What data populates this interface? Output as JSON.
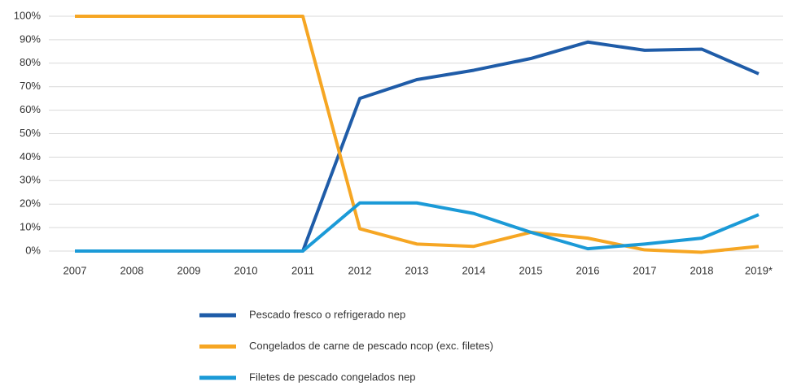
{
  "chart_data": {
    "type": "line",
    "categories": [
      "2007",
      "2008",
      "2009",
      "2010",
      "2011",
      "2012",
      "2013",
      "2014",
      "2015",
      "2016",
      "2017",
      "2018",
      "2019*"
    ],
    "series": [
      {
        "name": "Pescado fresco o refrigerado nep",
        "color": "#1f5ca8",
        "values": [
          0,
          0,
          0,
          0,
          0,
          65,
          73,
          77,
          82,
          89,
          85.5,
          86,
          75.5
        ]
      },
      {
        "name": "Congelados de carne de pescado ncop (exc. filetes)",
        "color": "#f6a623",
        "values": [
          100,
          100,
          100,
          100,
          100,
          9.5,
          3,
          2,
          8,
          5.5,
          0.5,
          -0.5,
          2
        ]
      },
      {
        "name": "Filetes de pescado congelados nep",
        "color": "#1b9ad7",
        "values": [
          0,
          0,
          0,
          0,
          0,
          20.5,
          20.5,
          16,
          8,
          1,
          3,
          5.5,
          15.5
        ]
      }
    ],
    "ylim": [
      0,
      100
    ],
    "yticks": [
      {
        "value": 0,
        "label": "0%"
      },
      {
        "value": 10,
        "label": "10%"
      },
      {
        "value": 20,
        "label": "20%"
      },
      {
        "value": 30,
        "label": "30%"
      },
      {
        "value": 40,
        "label": "40%"
      },
      {
        "value": 50,
        "label": "50%"
      },
      {
        "value": 60,
        "label": "60%"
      },
      {
        "value": 70,
        "label": "70%"
      },
      {
        "value": 80,
        "label": "80%"
      },
      {
        "value": 90,
        "label": "90%"
      },
      {
        "value": 100,
        "label": "100%"
      }
    ],
    "grid": true
  }
}
